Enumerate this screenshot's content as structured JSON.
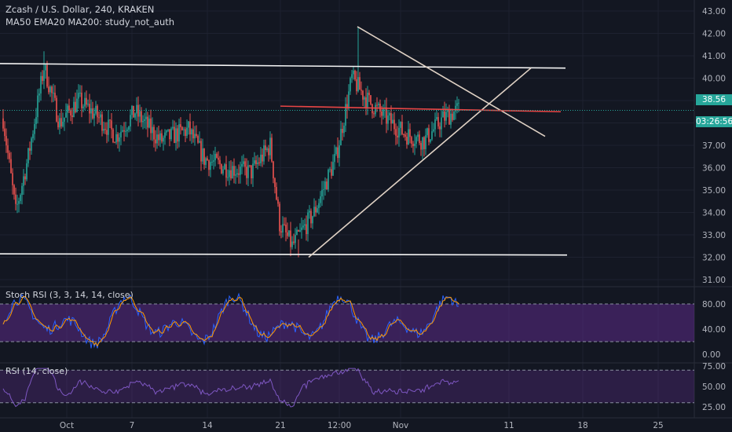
{
  "header": {
    "title": "Zcash / U.S. Dollar, 240, KRAKEN",
    "indicators": "MA50 EMA20 MA200: study_not_auth"
  },
  "panes": {
    "stoch_label": "Stoch RSI (3, 3, 14, 14, close)",
    "rsi_label": "RSI (14, close)"
  },
  "price_badge": {
    "price": "38.56",
    "countdown": "03:26:56"
  },
  "colors": {
    "background": "#131722",
    "up": "#26a69a",
    "down": "#ef5350",
    "trendline": "#f5f5f5",
    "resistance": "#e84545",
    "stoch_fill": "#5b2a86",
    "rsi_line": "#7e57c2",
    "stoch_k": "#2962ff",
    "stoch_d": "#ff9800"
  },
  "chart_data": [
    {
      "type": "candlestick",
      "title": "Zcash / U.S. Dollar, 240, KRAKEN",
      "x_tick_labels": [
        "Oct",
        "7",
        "14",
        "21",
        "12:00",
        "Nov",
        "11",
        "18",
        "25"
      ],
      "y_tick_labels": [
        "43.00",
        "42.00",
        "41.00",
        "40.00",
        "39.00",
        "38.00",
        "37.00",
        "36.00",
        "35.00",
        "34.00",
        "33.00",
        "32.00",
        "31.00"
      ],
      "ylim": [
        31,
        43.5
      ],
      "last_price": 38.56,
      "key_levels": {
        "period_high": 42.3,
        "period_low": 32.0
      },
      "drawn_lines": [
        {
          "name": "upper channel",
          "from": [
            40.65
          ],
          "to": [
            40.45
          ]
        },
        {
          "name": "lower channel",
          "from": [
            32.15
          ],
          "to": [
            32.1
          ]
        },
        {
          "name": "descending line",
          "from": [
            42.3
          ],
          "to": [
            37.4
          ]
        },
        {
          "name": "ascending line",
          "from": [
            32.0
          ],
          "to": [
            40.45
          ]
        },
        {
          "name": "resistance",
          "from": [
            38.75
          ],
          "to": [
            38.5
          ]
        }
      ],
      "anchors": [
        {
          "t": 0,
          "p": 38.2
        },
        {
          "t": 8,
          "p": 34.0
        },
        {
          "t": 16,
          "p": 36.5
        },
        {
          "t": 26,
          "p": 40.5
        },
        {
          "t": 36,
          "p": 38.0
        },
        {
          "t": 48,
          "p": 39.0
        },
        {
          "t": 60,
          "p": 38.3
        },
        {
          "t": 72,
          "p": 37.4
        },
        {
          "t": 84,
          "p": 38.5
        },
        {
          "t": 100,
          "p": 37.2
        },
        {
          "t": 118,
          "p": 37.7
        },
        {
          "t": 128,
          "p": 36.4
        },
        {
          "t": 142,
          "p": 36.0
        },
        {
          "t": 158,
          "p": 35.8
        },
        {
          "t": 170,
          "p": 37.0
        },
        {
          "t": 176,
          "p": 33.5
        },
        {
          "t": 184,
          "p": 32.5
        },
        {
          "t": 198,
          "p": 34.0
        },
        {
          "t": 212,
          "p": 36.5
        },
        {
          "t": 222,
          "p": 40.0
        },
        {
          "t": 232,
          "p": 39.0
        },
        {
          "t": 244,
          "p": 38.2
        },
        {
          "t": 256,
          "p": 37.5
        },
        {
          "t": 268,
          "p": 37.2
        },
        {
          "t": 280,
          "p": 38.2
        },
        {
          "t": 290,
          "p": 38.6
        }
      ],
      "candle_count": 291
    },
    {
      "type": "line",
      "title": "Stoch RSI (3, 3, 14, 14, close)",
      "y_tick_labels": [
        "80.00",
        "40.00",
        "0.00"
      ],
      "ylim": [
        0,
        100
      ],
      "bands": [
        20,
        80
      ]
    },
    {
      "type": "line",
      "title": "RSI (14, close)",
      "y_tick_labels": [
        "75.00",
        "50.00",
        "25.00"
      ],
      "ylim": [
        20,
        80
      ],
      "bands": [
        30,
        70
      ]
    }
  ]
}
